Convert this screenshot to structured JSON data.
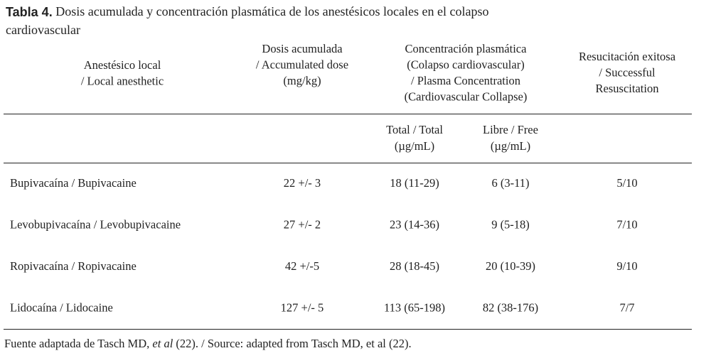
{
  "title": {
    "label": "Tabla 4.",
    "lines": [
      "Dosis acumulada y concentración plasmática de los anestésicos locales en el colapso",
      "cardiovascular"
    ]
  },
  "table": {
    "header": [
      [
        "Anestésico local",
        "/ Local anesthetic"
      ],
      [
        "Dosis acumulada",
        "/ Accumulated dose",
        "(mg/kg)"
      ],
      [
        "Concentración plasmática",
        "(Colapso cardiovascular)",
        "/ Plasma Concentration",
        "(Cardiovascular Collapse)"
      ],
      [
        "Resucitación exitosa",
        "/ Successful",
        "Resuscitation"
      ]
    ],
    "subheader": [
      [
        "Total / Total",
        "(µg/mL)"
      ],
      [
        "Libre / Free",
        "(µg/mL)"
      ]
    ],
    "rows": [
      [
        "Bupivacaína / Bupivacaine",
        "22 +/- 3",
        "18 (11-29)",
        "6 (3-11)",
        "5/10"
      ],
      [
        "Levobupivacaína / Levobupivacaine",
        "27 +/- 2",
        "23 (14-36)",
        "9 (5-18)",
        "7/10"
      ],
      [
        "Ropivacaína / Ropivacaine",
        "42 +/-5",
        "28 (18-45)",
        "20 (10-39)",
        "9/10"
      ],
      [
        "Lidocaína / Lidocaine",
        "127 +/- 5",
        "113 (65-198)",
        "82 (38-176)",
        "7/7"
      ]
    ]
  },
  "footer": {
    "parts": [
      "Fuente adaptada de Tasch MD, ",
      "et al",
      " (22). / Source: adapted from Tasch MD, et al (22)."
    ]
  }
}
